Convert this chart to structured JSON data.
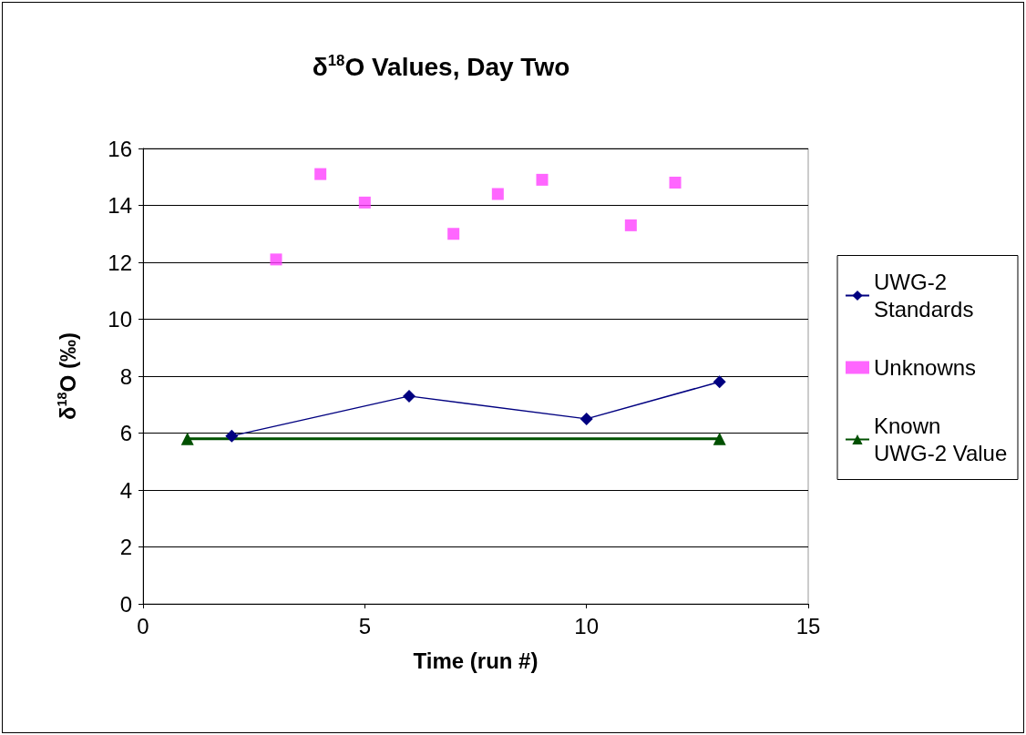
{
  "chart_data": {
    "type": "line",
    "title": "δ$^{18}$O Values, Day Two",
    "xlabel": "Time (run #)",
    "ylabel": "δ$^{18}$O (‰)",
    "xlim": [
      0,
      15
    ],
    "xticks": [
      0,
      5,
      10,
      15
    ],
    "ylim": [
      0,
      16
    ],
    "yticks": [
      0,
      2,
      4,
      6,
      8,
      10,
      12,
      14,
      16
    ],
    "grid": "y",
    "legend": "right",
    "series": [
      {
        "name": "UWG-2 Standards",
        "marker": "diamond",
        "color": "#000080",
        "x": [
          2,
          6,
          10,
          13
        ],
        "values": [
          5.9,
          7.3,
          6.5,
          7.8
        ]
      },
      {
        "name": "Unknowns",
        "type": "scatter",
        "marker": "square",
        "color": "#ff40ff",
        "x": [
          3,
          4,
          5,
          7,
          8,
          9,
          11,
          12
        ],
        "values": [
          12.1,
          15.1,
          14.1,
          13.0,
          14.4,
          14.9,
          13.3,
          14.8
        ]
      },
      {
        "name": "Known UWG-2 Value",
        "marker": "triangle",
        "color": "#005000",
        "x": [
          1,
          13
        ],
        "values": [
          5.8,
          5.8
        ]
      }
    ]
  }
}
